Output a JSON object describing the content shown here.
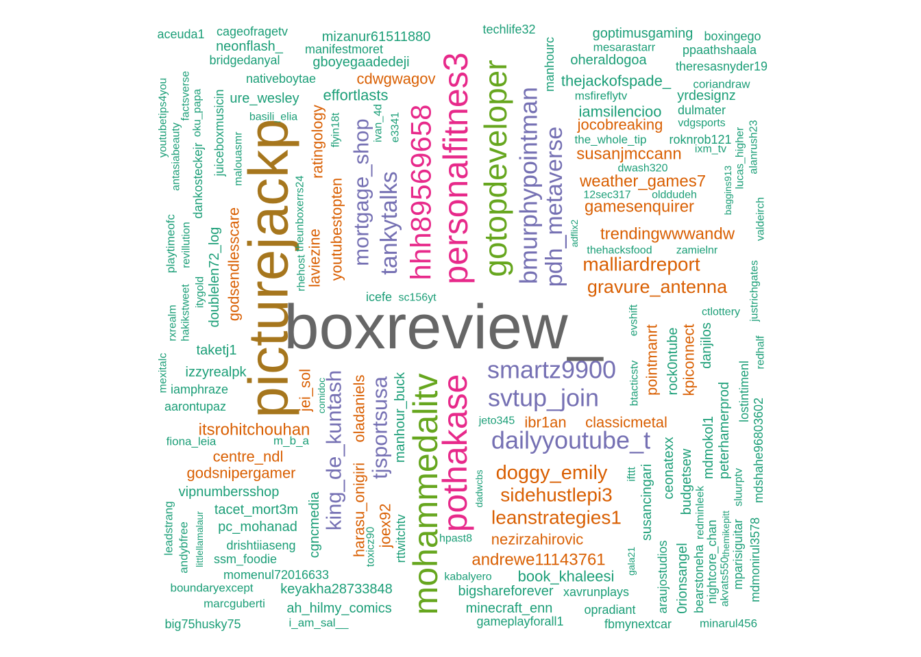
{
  "chart_data": {
    "type": "wordcloud",
    "colors": {
      "tier1": "#666666",
      "tier2": "#A6761D",
      "tier3": "#66A61E",
      "tier4": "#E7298A",
      "tier5": "#7570B3",
      "tier6": "#D95F02",
      "tier7": "#1B9E77"
    },
    "words": [
      {
        "text": "boxreview_",
        "tier": 1,
        "freq": 100
      },
      {
        "text": "picturejackp",
        "tier": 2,
        "freq": 70
      },
      {
        "text": "mohammedalitv",
        "tier": 3,
        "freq": 55
      },
      {
        "text": "pothakase",
        "tier": 4,
        "freq": 50
      },
      {
        "text": "personalfitnes3",
        "tier": 4,
        "freq": 50
      },
      {
        "text": "gotopdeveloper",
        "tier": 3,
        "freq": 45
      },
      {
        "text": "hhh89569658",
        "tier": 4,
        "freq": 40
      },
      {
        "text": "bmurphypointman",
        "tier": 5,
        "freq": 35
      },
      {
        "text": "smartz9900",
        "tier": 5,
        "freq": 35
      },
      {
        "text": "svtup_join",
        "tier": 5,
        "freq": 35
      },
      {
        "text": "dailyyoutube_t",
        "tier": 5,
        "freq": 35
      },
      {
        "text": "pdh_metaverse",
        "tier": 5,
        "freq": 35
      },
      {
        "text": "tankytalks",
        "tier": 5,
        "freq": 35
      },
      {
        "text": "mortgage_shop",
        "tier": 5,
        "freq": 33
      },
      {
        "text": "king_de_kuntash",
        "tier": 5,
        "freq": 33
      },
      {
        "text": "tjsportsusa",
        "tier": 5,
        "freq": 33
      },
      {
        "text": "doggy_emily",
        "tier": 6,
        "freq": 28
      },
      {
        "text": "leanstrategies1",
        "tier": 6,
        "freq": 28
      },
      {
        "text": "sidehustlepi3",
        "tier": 6,
        "freq": 28
      },
      {
        "text": "malliardreport",
        "tier": 6,
        "freq": 28
      },
      {
        "text": "gravure_antenna",
        "tier": 6,
        "freq": 28
      },
      {
        "text": "trendingwwwandw",
        "tier": 6,
        "freq": 25
      },
      {
        "text": "gamesenquirer",
        "tier": 6,
        "freq": 25
      },
      {
        "text": "weather_games7",
        "tier": 6,
        "freq": 25
      },
      {
        "text": "susanjmccann",
        "tier": 6,
        "freq": 25
      },
      {
        "text": "jocobreaking",
        "tier": 6,
        "freq": 25
      },
      {
        "text": "andrewe11143761",
        "tier": 6,
        "freq": 25
      },
      {
        "text": "itsrohitchouhan",
        "tier": 6,
        "freq": 25
      },
      {
        "text": "godsnipergamer",
        "tier": 6,
        "freq": 22
      },
      {
        "text": "centre_ndl",
        "tier": 6,
        "freq": 22
      },
      {
        "text": "classicmetal",
        "tier": 6,
        "freq": 22
      },
      {
        "text": "ibr1an",
        "tier": 6,
        "freq": 22
      },
      {
        "text": "nezirzahirovic",
        "tier": 6,
        "freq": 22
      },
      {
        "text": "cdwgwagov",
        "tier": 6,
        "freq": 22
      },
      {
        "text": "youtubestopten",
        "tier": 6,
        "freq": 22
      },
      {
        "text": "ratingology",
        "tier": 6,
        "freq": 22
      },
      {
        "text": "laviezine",
        "tier": 6,
        "freq": 22
      },
      {
        "text": "godsendlesscare",
        "tier": 6,
        "freq": 22
      },
      {
        "text": "jei_sol",
        "tier": 6,
        "freq": 22
      },
      {
        "text": "oladaniels",
        "tier": 6,
        "freq": 22
      },
      {
        "text": "harasu_onigiri",
        "tier": 6,
        "freq": 22
      },
      {
        "text": "joex92",
        "tier": 6,
        "freq": 22
      },
      {
        "text": "pointmanrt",
        "tier": 6,
        "freq": 22
      },
      {
        "text": "kpiconnect",
        "tier": 6,
        "freq": 22
      },
      {
        "text": "aceuda1",
        "tier": 7,
        "freq": 10
      },
      {
        "text": "cageofragetv",
        "tier": 7,
        "freq": 10
      },
      {
        "text": "mizanur61511880",
        "tier": 7,
        "freq": 12
      },
      {
        "text": "techlife32",
        "tier": 7,
        "freq": 10
      },
      {
        "text": "goptimusgaming",
        "tier": 7,
        "freq": 10
      },
      {
        "text": "boxingego",
        "tier": 7,
        "freq": 10
      },
      {
        "text": "neonflash_",
        "tier": 7,
        "freq": 10
      },
      {
        "text": "manifestmoret",
        "tier": 7,
        "freq": 10
      },
      {
        "text": "mesarastarr",
        "tier": 7,
        "freq": 10
      },
      {
        "text": "ppaathshaala",
        "tier": 7,
        "freq": 10
      },
      {
        "text": "bridgedanyal",
        "tier": 7,
        "freq": 10
      },
      {
        "text": "gboyegaadedeji",
        "tier": 7,
        "freq": 10
      },
      {
        "text": "manhourc",
        "tier": 7,
        "freq": 10
      },
      {
        "text": "oheraldogoa",
        "tier": 7,
        "freq": 10
      },
      {
        "text": "theresasnyder19",
        "tier": 7,
        "freq": 10
      },
      {
        "text": "nativeboytae",
        "tier": 7,
        "freq": 10
      },
      {
        "text": "thejackofspade_",
        "tier": 7,
        "freq": 12
      },
      {
        "text": "coriandraw",
        "tier": 7,
        "freq": 10
      },
      {
        "text": "effortlasts",
        "tier": 7,
        "freq": 12
      },
      {
        "text": "ure_wesley",
        "tier": 7,
        "freq": 12
      },
      {
        "text": "msfireflytv",
        "tier": 7,
        "freq": 10
      },
      {
        "text": "yrdesignz",
        "tier": 7,
        "freq": 10
      },
      {
        "text": "iamsilencioo",
        "tier": 7,
        "freq": 12
      },
      {
        "text": "dulmater",
        "tier": 7,
        "freq": 10
      },
      {
        "text": "vdgsports",
        "tier": 7,
        "freq": 10
      },
      {
        "text": "basili_elia",
        "tier": 7,
        "freq": 10
      },
      {
        "text": "the_whole_tip",
        "tier": 7,
        "freq": 10
      },
      {
        "text": "roknrob121",
        "tier": 7,
        "freq": 10
      },
      {
        "text": "ixm_tv",
        "tier": 7,
        "freq": 10
      },
      {
        "text": "dwash320",
        "tier": 7,
        "freq": 10
      },
      {
        "text": "12sec317",
        "tier": 7,
        "freq": 10
      },
      {
        "text": "olddudeh",
        "tier": 7,
        "freq": 10
      },
      {
        "text": "thehacksfood",
        "tier": 7,
        "freq": 10
      },
      {
        "text": "zamielnr",
        "tier": 7,
        "freq": 10
      },
      {
        "text": "icefe",
        "tier": 7,
        "freq": 10
      },
      {
        "text": "sc156yt",
        "tier": 7,
        "freq": 10
      },
      {
        "text": "ctlottery",
        "tier": 7,
        "freq": 10
      },
      {
        "text": "taketj1",
        "tier": 7,
        "freq": 10
      },
      {
        "text": "izzyrealpk",
        "tier": 7,
        "freq": 10
      },
      {
        "text": "iamphraze",
        "tier": 7,
        "freq": 10
      },
      {
        "text": "aarontupaz",
        "tier": 7,
        "freq": 10
      },
      {
        "text": "fiona_leia",
        "tier": 7,
        "freq": 10
      },
      {
        "text": "m_b_a",
        "tier": 7,
        "freq": 10
      },
      {
        "text": "jeto345",
        "tier": 7,
        "freq": 10
      },
      {
        "text": "vipnumbersshop",
        "tier": 7,
        "freq": 10
      },
      {
        "text": "tacet_mort3m",
        "tier": 7,
        "freq": 10
      },
      {
        "text": "pc_mohanad",
        "tier": 7,
        "freq": 10
      },
      {
        "text": "drishtiiaseng",
        "tier": 7,
        "freq": 10
      },
      {
        "text": "ssm_foodie",
        "tier": 7,
        "freq": 10
      },
      {
        "text": "momenul72016633",
        "tier": 7,
        "freq": 10
      },
      {
        "text": "boundaryexcept",
        "tier": 7,
        "freq": 10
      },
      {
        "text": "keyakha28733848",
        "tier": 7,
        "freq": 10
      },
      {
        "text": "marcguberti",
        "tier": 7,
        "freq": 10
      },
      {
        "text": "ah_hilmy_comics",
        "tier": 7,
        "freq": 10
      },
      {
        "text": "big75husky75",
        "tier": 7,
        "freq": 10
      },
      {
        "text": "i_am_sal__",
        "tier": 7,
        "freq": 10
      },
      {
        "text": "hpast8",
        "tier": 7,
        "freq": 10
      },
      {
        "text": "kabalyero",
        "tier": 7,
        "freq": 10
      },
      {
        "text": "book_khaleesi",
        "tier": 7,
        "freq": 12
      },
      {
        "text": "bigshareforever",
        "tier": 7,
        "freq": 12
      },
      {
        "text": "xavrunplays",
        "tier": 7,
        "freq": 10
      },
      {
        "text": "minecraft_enn",
        "tier": 7,
        "freq": 10
      },
      {
        "text": "opradiant",
        "tier": 7,
        "freq": 10
      },
      {
        "text": "gameplayforall1",
        "tier": 7,
        "freq": 10
      },
      {
        "text": "fbmynextcar",
        "tier": 7,
        "freq": 10
      },
      {
        "text": "minarul456",
        "tier": 7,
        "freq": 10
      },
      {
        "text": "youtubetips4you",
        "tier": 7,
        "freq": 10
      },
      {
        "text": "factsverse",
        "tier": 7,
        "freq": 10
      },
      {
        "text": "antasiabeauty",
        "tier": 7,
        "freq": 10
      },
      {
        "text": "oku_papa",
        "tier": 7,
        "freq": 10
      },
      {
        "text": "dankosteckejr",
        "tier": 7,
        "freq": 10
      },
      {
        "text": "juiceboxmusicin",
        "tier": 7,
        "freq": 10
      },
      {
        "text": "malouasmr",
        "tier": 7,
        "freq": 10
      },
      {
        "text": "playtimeofc",
        "tier": 7,
        "freq": 10
      },
      {
        "text": "revillution",
        "tier": 7,
        "freq": 10
      },
      {
        "text": "itygold",
        "tier": 7,
        "freq": 10
      },
      {
        "text": "doublelen72_log",
        "tier": 7,
        "freq": 10
      },
      {
        "text": "theunboxerrs24",
        "tier": 7,
        "freq": 10
      },
      {
        "text": "rhehost",
        "tier": 7,
        "freq": 10
      },
      {
        "text": "rxrealm",
        "tier": 7,
        "freq": 10
      },
      {
        "text": "hakikstweet",
        "tier": 7,
        "freq": 10
      },
      {
        "text": "mexitalc",
        "tier": 7,
        "freq": 10
      },
      {
        "text": "flyin18t",
        "tier": 7,
        "freq": 10
      },
      {
        "text": "ivan_4d",
        "tier": 7,
        "freq": 10
      },
      {
        "text": "e3341",
        "tier": 7,
        "freq": 10
      },
      {
        "text": "lucas_higher",
        "tier": 7,
        "freq": 10
      },
      {
        "text": "alanrush23",
        "tier": 7,
        "freq": 10
      },
      {
        "text": "baggins913",
        "tier": 7,
        "freq": 10
      },
      {
        "text": "valdeirch",
        "tier": 7,
        "freq": 10
      },
      {
        "text": "adflix2",
        "tier": 7,
        "freq": 10
      },
      {
        "text": "justrichgates",
        "tier": 7,
        "freq": 10
      },
      {
        "text": "evshift",
        "tier": 7,
        "freq": 10
      },
      {
        "text": "btacticstv",
        "tier": 7,
        "freq": 10
      },
      {
        "text": "rock0ntube",
        "tier": 7,
        "freq": 10
      },
      {
        "text": "danjilos",
        "tier": 7,
        "freq": 10
      },
      {
        "text": "lostintimenl",
        "tier": 7,
        "freq": 10
      },
      {
        "text": "redhalf",
        "tier": 7,
        "freq": 10
      },
      {
        "text": "mdshahe96803602",
        "tier": 7,
        "freq": 10
      },
      {
        "text": "peterhamerprod",
        "tier": 7,
        "freq": 10
      },
      {
        "text": "mdmokol1",
        "tier": 7,
        "freq": 10
      },
      {
        "text": "budgetsew",
        "tier": 7,
        "freq": 10
      },
      {
        "text": "ceonatexx",
        "tier": 7,
        "freq": 10
      },
      {
        "text": "susancingari",
        "tier": 7,
        "freq": 10
      },
      {
        "text": "ifttt",
        "tier": 7,
        "freq": 10
      },
      {
        "text": "comidoc",
        "tier": 7,
        "freq": 10
      },
      {
        "text": "cgncmedia",
        "tier": 7,
        "freq": 10
      },
      {
        "text": "manhour_buck",
        "tier": 7,
        "freq": 10
      },
      {
        "text": "rttwitchtv",
        "tier": 7,
        "freq": 10
      },
      {
        "text": "toxicz90",
        "tier": 7,
        "freq": 10
      },
      {
        "text": "dadwcbs",
        "tier": 7,
        "freq": 10
      },
      {
        "text": "leadstrang",
        "tier": 7,
        "freq": 10
      },
      {
        "text": "andybfree",
        "tier": 7,
        "freq": 10
      },
      {
        "text": "littlellamalaur",
        "tier": 7,
        "freq": 10
      },
      {
        "text": "gala21",
        "tier": 7,
        "freq": 10
      },
      {
        "text": "araujostudios",
        "tier": 7,
        "freq": 10
      },
      {
        "text": "0rionsangel",
        "tier": 7,
        "freq": 10
      },
      {
        "text": "bearstoneha",
        "tier": 7,
        "freq": 10
      },
      {
        "text": "redminleek",
        "tier": 7,
        "freq": 10
      },
      {
        "text": "nightcore_chan",
        "tier": 7,
        "freq": 10
      },
      {
        "text": "akvats550",
        "tier": 7,
        "freq": 10
      },
      {
        "text": "themikepitt",
        "tier": 7,
        "freq": 10
      },
      {
        "text": "mparisiguitar",
        "tier": 7,
        "freq": 10
      },
      {
        "text": "sluurptv",
        "tier": 7,
        "freq": 10
      },
      {
        "text": "mdmonirul3578",
        "tier": 7,
        "freq": 10
      }
    ]
  }
}
